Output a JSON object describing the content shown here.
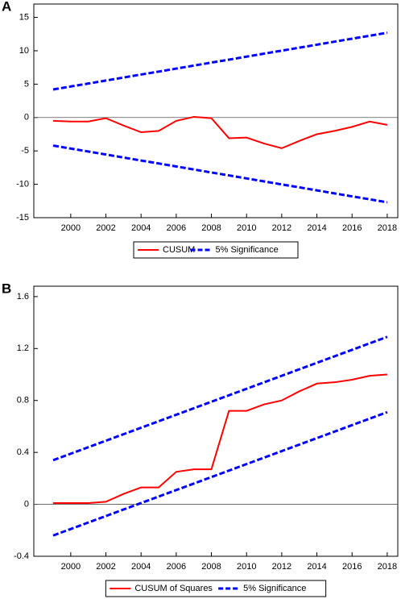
{
  "chart_data": [
    {
      "type": "line",
      "panel": "A",
      "x": [
        1999,
        2000,
        2001,
        2002,
        2003,
        2004,
        2005,
        2006,
        2007,
        2008,
        2009,
        2010,
        2011,
        2012,
        2013,
        2014,
        2015,
        2016,
        2017,
        2018
      ],
      "series": [
        {
          "name": "CUSUM",
          "color": "#ff0000",
          "dash": false,
          "values": [
            -0.5,
            -0.6,
            -0.6,
            -0.1,
            -1.2,
            -2.2,
            -2.0,
            -0.5,
            0.1,
            -0.1,
            -3.1,
            -3.0,
            -3.9,
            -4.6,
            -3.5,
            -2.5,
            -2.0,
            -1.4,
            -0.6,
            -1.1
          ]
        },
        {
          "name": "5% Significance",
          "color": "#0000ff",
          "dash": true,
          "values": [
            4.2,
            4.65,
            5.09,
            5.54,
            5.99,
            6.44,
            6.88,
            7.33,
            7.78,
            8.23,
            8.67,
            9.12,
            9.57,
            10.02,
            10.46,
            10.91,
            11.36,
            11.81,
            12.25,
            12.7
          ],
          "lower": [
            -4.2,
            -4.65,
            -5.09,
            -5.54,
            -5.99,
            -6.44,
            -6.88,
            -7.33,
            -7.78,
            -8.23,
            -8.67,
            -9.12,
            -9.57,
            -10.02,
            -10.46,
            -10.91,
            -11.36,
            -11.81,
            -12.25,
            -12.7
          ]
        }
      ],
      "xlim": [
        1997.9,
        2018.6
      ],
      "xticks": [
        2000,
        2002,
        2004,
        2006,
        2008,
        2010,
        2012,
        2014,
        2016,
        2018
      ],
      "ylim": [
        -15,
        17
      ],
      "yticks": [
        -15,
        -10,
        -5,
        0,
        5,
        10,
        15
      ],
      "zero_line": true
    },
    {
      "type": "line",
      "panel": "B",
      "x": [
        1999,
        2000,
        2001,
        2002,
        2003,
        2004,
        2005,
        2006,
        2007,
        2008,
        2009,
        2010,
        2011,
        2012,
        2013,
        2014,
        2015,
        2016,
        2017,
        2018
      ],
      "series": [
        {
          "name": "CUSUM of Squares",
          "color": "#ff0000",
          "dash": false,
          "values": [
            0.01,
            0.01,
            0.01,
            0.02,
            0.08,
            0.13,
            0.13,
            0.25,
            0.27,
            0.27,
            0.72,
            0.72,
            0.77,
            0.8,
            0.87,
            0.93,
            0.94,
            0.96,
            0.99,
            1.0
          ]
        },
        {
          "name": "5% Significance",
          "color": "#0000ff",
          "dash": true,
          "values": [
            0.34,
            0.39,
            0.44,
            0.49,
            0.54,
            0.59,
            0.64,
            0.69,
            0.74,
            0.79,
            0.84,
            0.89,
            0.94,
            0.99,
            1.04,
            1.09,
            1.14,
            1.19,
            1.24,
            1.29
          ],
          "lower": [
            -0.24,
            -0.19,
            -0.14,
            -0.09,
            -0.04,
            0.01,
            0.06,
            0.11,
            0.16,
            0.21,
            0.26,
            0.31,
            0.36,
            0.41,
            0.46,
            0.51,
            0.56,
            0.61,
            0.66,
            0.71
          ]
        }
      ],
      "xlim": [
        1997.9,
        2018.6
      ],
      "xticks": [
        2000,
        2002,
        2004,
        2006,
        2008,
        2010,
        2012,
        2014,
        2016,
        2018
      ],
      "ylim": [
        -0.4,
        1.68
      ],
      "yticks": [
        -0.4,
        0.0,
        0.4,
        0.8,
        1.2,
        1.6
      ],
      "zero_line": true
    }
  ]
}
